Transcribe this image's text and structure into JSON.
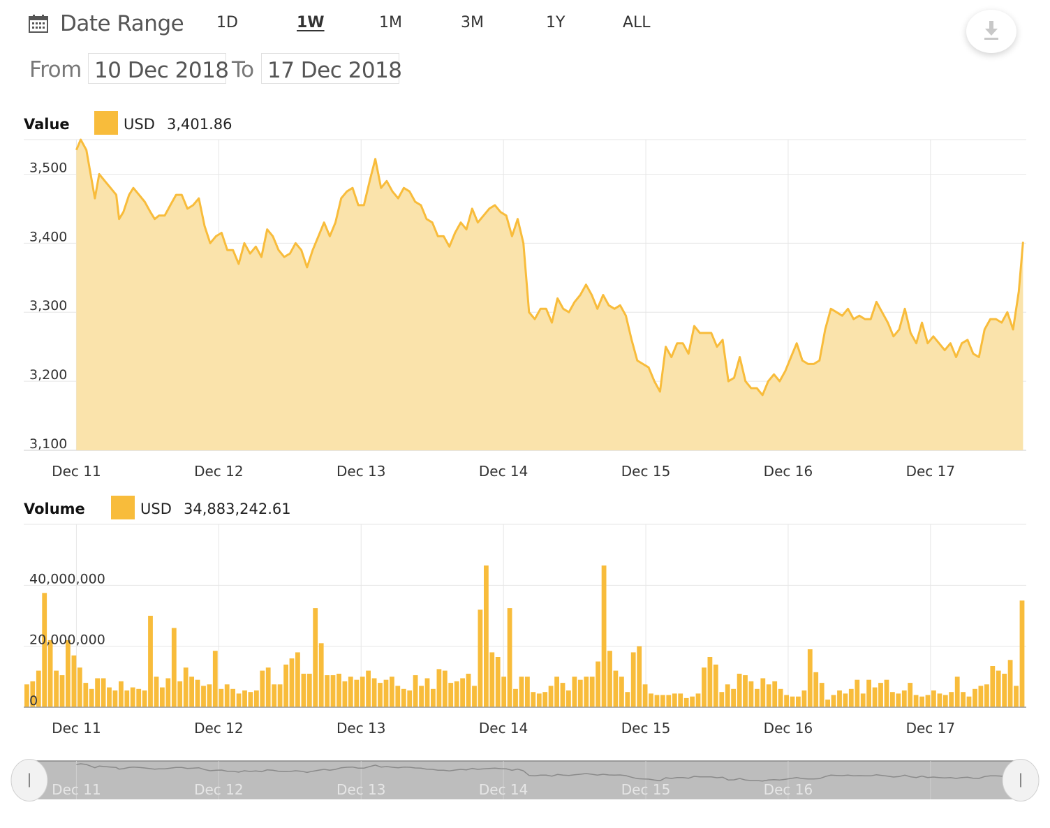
{
  "toolbar": {
    "date_range_label": "Date Range",
    "ranges": [
      "1D",
      "1W",
      "1M",
      "3M",
      "1Y",
      "ALL"
    ],
    "active_range": "1W",
    "from_label": "From",
    "from_value": "10 Dec 2018",
    "to_label": "To",
    "to_value": "17 Dec 2018"
  },
  "colors": {
    "accent": "#f8bc3b",
    "fill": "#fae3ab",
    "grid": "#e6e6e6",
    "navigator": "#bdbdbd"
  },
  "chart_data": [
    {
      "type": "area",
      "title": "Value",
      "legend": {
        "currency": "USD",
        "value": "3,401.86"
      },
      "x_ticks": [
        "Dec 11",
        "Dec 12",
        "Dec 13",
        "Dec 14",
        "Dec 15",
        "Dec 16",
        "Dec 17"
      ],
      "y_ticks": [
        "3,100",
        "3,200",
        "3,300",
        "3,400",
        "3,500"
      ],
      "ylim": [
        3100,
        3550
      ],
      "xlim": [
        0,
        7
      ],
      "grid": true,
      "points": [
        [
          0.0,
          3535
        ],
        [
          0.03,
          3550
        ],
        [
          0.07,
          3535
        ],
        [
          0.1,
          3500
        ],
        [
          0.13,
          3465
        ],
        [
          0.16,
          3500
        ],
        [
          0.2,
          3490
        ],
        [
          0.24,
          3480
        ],
        [
          0.28,
          3470
        ],
        [
          0.3,
          3435
        ],
        [
          0.33,
          3445
        ],
        [
          0.37,
          3470
        ],
        [
          0.4,
          3480
        ],
        [
          0.44,
          3470
        ],
        [
          0.48,
          3460
        ],
        [
          0.52,
          3445
        ],
        [
          0.55,
          3435
        ],
        [
          0.58,
          3440
        ],
        [
          0.62,
          3440
        ],
        [
          0.66,
          3455
        ],
        [
          0.7,
          3470
        ],
        [
          0.74,
          3470
        ],
        [
          0.78,
          3450
        ],
        [
          0.82,
          3455
        ],
        [
          0.86,
          3465
        ],
        [
          0.9,
          3425
        ],
        [
          0.94,
          3400
        ],
        [
          0.98,
          3410
        ],
        [
          1.02,
          3415
        ],
        [
          1.06,
          3390
        ],
        [
          1.1,
          3390
        ],
        [
          1.14,
          3370
        ],
        [
          1.18,
          3400
        ],
        [
          1.22,
          3385
        ],
        [
          1.26,
          3395
        ],
        [
          1.3,
          3380
        ],
        [
          1.34,
          3420
        ],
        [
          1.38,
          3410
        ],
        [
          1.42,
          3390
        ],
        [
          1.46,
          3380
        ],
        [
          1.5,
          3385
        ],
        [
          1.54,
          3400
        ],
        [
          1.58,
          3390
        ],
        [
          1.62,
          3365
        ],
        [
          1.66,
          3390
        ],
        [
          1.7,
          3410
        ],
        [
          1.74,
          3430
        ],
        [
          1.78,
          3410
        ],
        [
          1.82,
          3430
        ],
        [
          1.86,
          3465
        ],
        [
          1.9,
          3475
        ],
        [
          1.94,
          3480
        ],
        [
          1.98,
          3455
        ],
        [
          2.02,
          3455
        ],
        [
          2.06,
          3490
        ],
        [
          2.1,
          3522
        ],
        [
          2.14,
          3480
        ],
        [
          2.18,
          3490
        ],
        [
          2.22,
          3475
        ],
        [
          2.26,
          3465
        ],
        [
          2.3,
          3480
        ],
        [
          2.34,
          3475
        ],
        [
          2.38,
          3460
        ],
        [
          2.42,
          3455
        ],
        [
          2.46,
          3435
        ],
        [
          2.5,
          3430
        ],
        [
          2.54,
          3410
        ],
        [
          2.58,
          3410
        ],
        [
          2.62,
          3395
        ],
        [
          2.66,
          3415
        ],
        [
          2.7,
          3430
        ],
        [
          2.74,
          3420
        ],
        [
          2.78,
          3450
        ],
        [
          2.82,
          3430
        ],
        [
          2.86,
          3440
        ],
        [
          2.9,
          3450
        ],
        [
          2.94,
          3455
        ],
        [
          2.98,
          3445
        ],
        [
          3.02,
          3440
        ],
        [
          3.06,
          3410
        ],
        [
          3.1,
          3435
        ],
        [
          3.14,
          3400
        ],
        [
          3.18,
          3300
        ],
        [
          3.22,
          3290
        ],
        [
          3.26,
          3305
        ],
        [
          3.3,
          3305
        ],
        [
          3.34,
          3285
        ],
        [
          3.38,
          3320
        ],
        [
          3.42,
          3305
        ],
        [
          3.46,
          3300
        ],
        [
          3.5,
          3315
        ],
        [
          3.54,
          3325
        ],
        [
          3.58,
          3340
        ],
        [
          3.62,
          3325
        ],
        [
          3.66,
          3305
        ],
        [
          3.7,
          3325
        ],
        [
          3.74,
          3310
        ],
        [
          3.78,
          3305
        ],
        [
          3.82,
          3310
        ],
        [
          3.86,
          3295
        ],
        [
          3.9,
          3260
        ],
        [
          3.94,
          3230
        ],
        [
          3.98,
          3225
        ],
        [
          4.02,
          3220
        ],
        [
          4.06,
          3200
        ],
        [
          4.1,
          3185
        ],
        [
          4.14,
          3250
        ],
        [
          4.18,
          3235
        ],
        [
          4.22,
          3255
        ],
        [
          4.26,
          3255
        ],
        [
          4.3,
          3240
        ],
        [
          4.34,
          3280
        ],
        [
          4.38,
          3270
        ],
        [
          4.42,
          3270
        ],
        [
          4.46,
          3270
        ],
        [
          4.5,
          3250
        ],
        [
          4.54,
          3260
        ],
        [
          4.58,
          3200
        ],
        [
          4.62,
          3205
        ],
        [
          4.66,
          3235
        ],
        [
          4.7,
          3200
        ],
        [
          4.74,
          3190
        ],
        [
          4.78,
          3190
        ],
        [
          4.82,
          3180
        ],
        [
          4.86,
          3200
        ],
        [
          4.9,
          3210
        ],
        [
          4.94,
          3200
        ],
        [
          4.98,
          3215
        ],
        [
          5.02,
          3235
        ],
        [
          5.06,
          3255
        ],
        [
          5.1,
          3230
        ],
        [
          5.14,
          3225
        ],
        [
          5.18,
          3225
        ],
        [
          5.22,
          3230
        ],
        [
          5.26,
          3275
        ],
        [
          5.3,
          3305
        ],
        [
          5.34,
          3300
        ],
        [
          5.38,
          3295
        ],
        [
          5.42,
          3305
        ],
        [
          5.46,
          3290
        ],
        [
          5.5,
          3295
        ],
        [
          5.54,
          3290
        ],
        [
          5.58,
          3290
        ],
        [
          5.62,
          3315
        ],
        [
          5.66,
          3300
        ],
        [
          5.7,
          3285
        ],
        [
          5.74,
          3265
        ],
        [
          5.78,
          3275
        ],
        [
          5.82,
          3305
        ],
        [
          5.86,
          3270
        ],
        [
          5.9,
          3255
        ],
        [
          5.94,
          3285
        ],
        [
          5.98,
          3255
        ],
        [
          6.02,
          3265
        ],
        [
          6.06,
          3255
        ],
        [
          6.1,
          3245
        ],
        [
          6.14,
          3255
        ],
        [
          6.18,
          3235
        ],
        [
          6.22,
          3255
        ],
        [
          6.26,
          3260
        ],
        [
          6.3,
          3240
        ],
        [
          6.34,
          3235
        ],
        [
          6.38,
          3275
        ],
        [
          6.42,
          3290
        ],
        [
          6.46,
          3290
        ],
        [
          6.5,
          3285
        ],
        [
          6.54,
          3300
        ],
        [
          6.58,
          3275
        ],
        [
          6.62,
          3330
        ],
        [
          6.65,
          3402
        ]
      ]
    },
    {
      "type": "bar",
      "title": "Volume",
      "legend": {
        "currency": "USD",
        "value": "34,883,242.61"
      },
      "x_ticks": [
        "Dec 11",
        "Dec 12",
        "Dec 13",
        "Dec 14",
        "Dec 15",
        "Dec 16",
        "Dec 17"
      ],
      "y_ticks": [
        "0",
        "20,000,000",
        "40,000,000"
      ],
      "ylim": [
        0,
        60000000
      ],
      "xlim": [
        0,
        7
      ],
      "grid": true,
      "bar_width": 0.035,
      "values": [
        7.5,
        8.5,
        12,
        37.5,
        22,
        12,
        10.5,
        22,
        17,
        13,
        8,
        6,
        9.5,
        9.5,
        6.5,
        5.5,
        8.5,
        5.5,
        6.5,
        6,
        5.5,
        30,
        10,
        6.5,
        9.5,
        26,
        8.5,
        13,
        10,
        9,
        7,
        7.5,
        18.5,
        6,
        7.5,
        6,
        4.5,
        5.5,
        5,
        5.5,
        12,
        13,
        7.5,
        7.5,
        14,
        16,
        18,
        11,
        11,
        32.5,
        21,
        10.5,
        10.5,
        11,
        8.5,
        10,
        9,
        10,
        12,
        9.5,
        8,
        9,
        10,
        7,
        6,
        5.5,
        10.5,
        7,
        9.5,
        6,
        12.5,
        12,
        8,
        8.5,
        9.5,
        11,
        7,
        32,
        46.5,
        18,
        16.5,
        10,
        32.5,
        6,
        10,
        10,
        5,
        4.5,
        5,
        7,
        10,
        8,
        5.5,
        10,
        9,
        10,
        10,
        15,
        46.5,
        18.5,
        12,
        10,
        5,
        18,
        20,
        7.5,
        4.5,
        4,
        4,
        4,
        4.5,
        4.5,
        3,
        3.5,
        4.5,
        13,
        16.5,
        14,
        5,
        7.5,
        6,
        11,
        10.5,
        8.5,
        6,
        9.5,
        7.5,
        8.5,
        6,
        4,
        3.5,
        3.5,
        5.5,
        19,
        11.5,
        8,
        2.5,
        4,
        5.5,
        4.5,
        6,
        9,
        4.5,
        9,
        6.5,
        8,
        9,
        5,
        4.5,
        5.5,
        8,
        4,
        3.5,
        4,
        5.5,
        4.5,
        4,
        5,
        10,
        5,
        3.5,
        6,
        7,
        7.5,
        13.5,
        12,
        11,
        15.5,
        7,
        35
      ]
    }
  ],
  "navigator": {
    "labels": [
      "Dec 11",
      "Dec 12",
      "Dec 13",
      "Dec 14",
      "Dec 15",
      "Dec 16"
    ]
  }
}
